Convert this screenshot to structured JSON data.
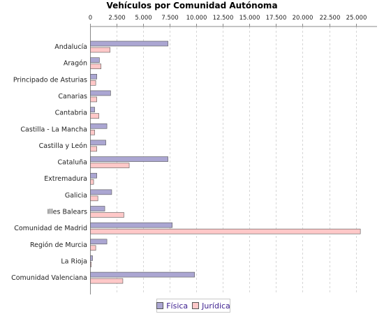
{
  "chart_data": {
    "type": "bar",
    "orientation": "horizontal",
    "title": "Vehículos por Comunidad Autónoma",
    "xlabel": "",
    "ylabel": "",
    "xlim": [
      0,
      27000
    ],
    "ticks": [
      0,
      2500,
      5000,
      7500,
      10000,
      12500,
      15000,
      17500,
      20000,
      22500,
      25000
    ],
    "tick_labels": [
      "0",
      "2.500",
      "5.000",
      "7.500",
      "10.000",
      "12.500",
      "15.000",
      "17.500",
      "20.000",
      "22.500",
      "25.000"
    ],
    "grid": true,
    "legend_position": "bottom",
    "categories": [
      "Andalucía",
      "Aragón",
      "Principado de Asturias",
      "Canarias",
      "Cantabria",
      "Castilla - La Mancha",
      "Castilla y León",
      "Cataluña",
      "Extremadura",
      "Galicia",
      "Illes Balears",
      "Comunidad de Madrid",
      "Región de Murcia",
      "La Rioja",
      "Comunidad Valenciana"
    ],
    "series": [
      {
        "name": "Física",
        "color": "#aba6d2",
        "values": [
          7300,
          850,
          600,
          1900,
          400,
          1550,
          1450,
          7300,
          600,
          2000,
          1350,
          7700,
          1550,
          200,
          9800
        ]
      },
      {
        "name": "Jurídica",
        "color": "#ffc8c8",
        "values": [
          1850,
          1000,
          500,
          600,
          800,
          400,
          600,
          3650,
          300,
          700,
          3150,
          25400,
          500,
          80,
          3050
        ]
      }
    ]
  }
}
